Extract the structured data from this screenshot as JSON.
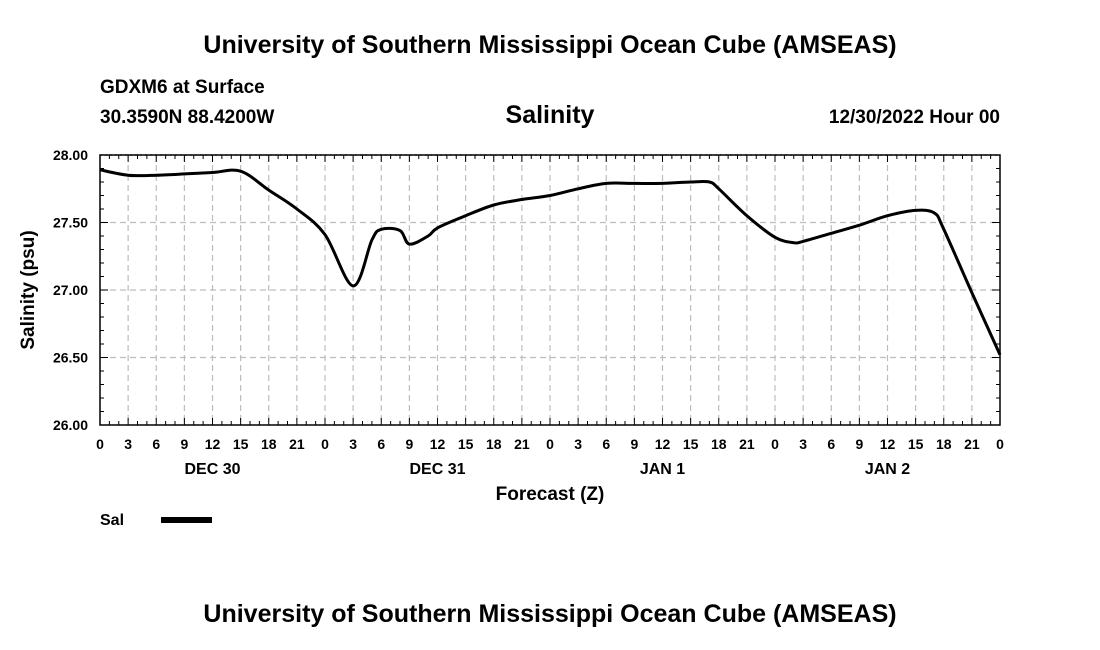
{
  "header": {
    "title_top": "University of Southern Mississippi Ocean Cube (AMSEAS)",
    "station": "GDXM6 at Surface",
    "coords": "30.3590N  88.4200W",
    "parameter": "Salinity",
    "datetime": "12/30/2022 Hour 00",
    "title_bottom": "University of Southern Mississippi Ocean Cube (AMSEAS)"
  },
  "legend": {
    "label": "Sal"
  },
  "colors": {
    "line": "#000000",
    "grid": "#bdbdbd",
    "background": "#ffffff"
  },
  "chart_data": {
    "type": "line",
    "title": "Salinity",
    "xlabel": "Forecast (Z)",
    "ylabel": "Salinity (psu)",
    "x_unit": "hours from 12/30/2022 00Z",
    "xlim": [
      0,
      96
    ],
    "ylim": [
      26.0,
      28.0
    ],
    "y_ticks": [
      26.0,
      26.5,
      27.0,
      27.5,
      28.0
    ],
    "y_tick_labels": [
      "26.00",
      "26.50",
      "27.00",
      "27.50",
      "28.00"
    ],
    "x_tick_labels": [
      "0",
      "3",
      "6",
      "9",
      "12",
      "15",
      "18",
      "21",
      "0",
      "3",
      "6",
      "9",
      "12",
      "15",
      "18",
      "21",
      "0",
      "3",
      "6",
      "9",
      "12",
      "15",
      "18",
      "21",
      "0",
      "3",
      "6",
      "9",
      "12",
      "15",
      "18",
      "21",
      "0"
    ],
    "day_labels": [
      {
        "hour": 12,
        "label": "DEC 30"
      },
      {
        "hour": 36,
        "label": "DEC 31"
      },
      {
        "hour": 60,
        "label": "JAN 1"
      },
      {
        "hour": 84,
        "label": "JAN 2"
      }
    ],
    "grid": true,
    "series": [
      {
        "name": "Sal",
        "x": [
          0,
          3,
          6,
          9,
          12,
          15,
          18,
          21,
          24,
          27,
          29,
          30,
          32,
          33,
          35,
          36,
          39,
          42,
          45,
          48,
          51,
          54,
          57,
          60,
          63,
          65,
          66,
          69,
          72,
          74,
          75,
          78,
          81,
          84,
          87,
          89,
          90,
          93,
          96
        ],
        "y": [
          27.89,
          27.85,
          27.85,
          27.86,
          27.87,
          27.88,
          27.74,
          27.6,
          27.41,
          27.03,
          27.37,
          27.45,
          27.44,
          27.34,
          27.4,
          27.46,
          27.55,
          27.63,
          27.67,
          27.7,
          27.75,
          27.79,
          27.79,
          27.79,
          27.8,
          27.8,
          27.75,
          27.55,
          27.39,
          27.35,
          27.36,
          27.42,
          27.48,
          27.55,
          27.59,
          27.57,
          27.45,
          26.98,
          26.52
        ]
      }
    ]
  }
}
